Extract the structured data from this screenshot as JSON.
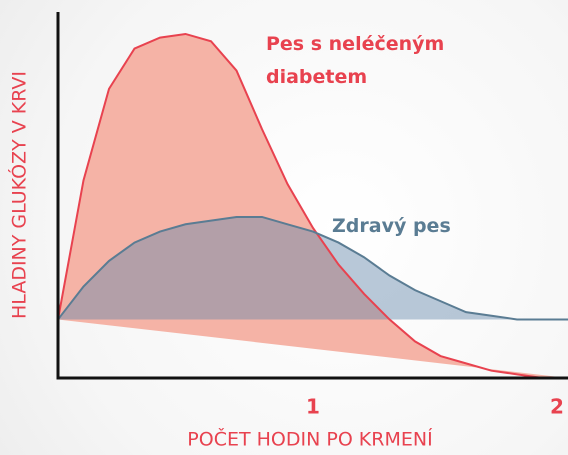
{
  "chart_data": {
    "type": "area",
    "xlabel": "POČET HODIN PO KRMENÍ",
    "ylabel": "HLADINY GLUKÓZY V KRVI",
    "x": [
      0,
      0.1,
      0.2,
      0.3,
      0.4,
      0.5,
      0.6,
      0.7,
      0.8,
      0.9,
      1.0,
      1.1,
      1.2,
      1.3,
      1.4,
      1.5,
      1.6,
      1.7,
      1.8,
      1.9,
      2.0
    ],
    "series": [
      {
        "name": "Pes s neléčeným diabetem",
        "color": "#e8424f",
        "fill": "#f5b3a6",
        "values": [
          16,
          54,
          79,
          90,
          93,
          94,
          92,
          84,
          68,
          53,
          41,
          31,
          23,
          16,
          10,
          6,
          4,
          2,
          1,
          0,
          0
        ]
      },
      {
        "name": "Zdravý pes",
        "color": "#5a7c93",
        "fill": "rgba(100,135,170,0.45)",
        "values": [
          16,
          25,
          32,
          37,
          40,
          42,
          43,
          44,
          44,
          42,
          40,
          37,
          33,
          28,
          24,
          21,
          18,
          17,
          16,
          16,
          16
        ]
      }
    ],
    "xlim": [
      0,
      2
    ],
    "xticks": [
      1,
      2
    ],
    "ylim": [
      0,
      100
    ]
  }
}
